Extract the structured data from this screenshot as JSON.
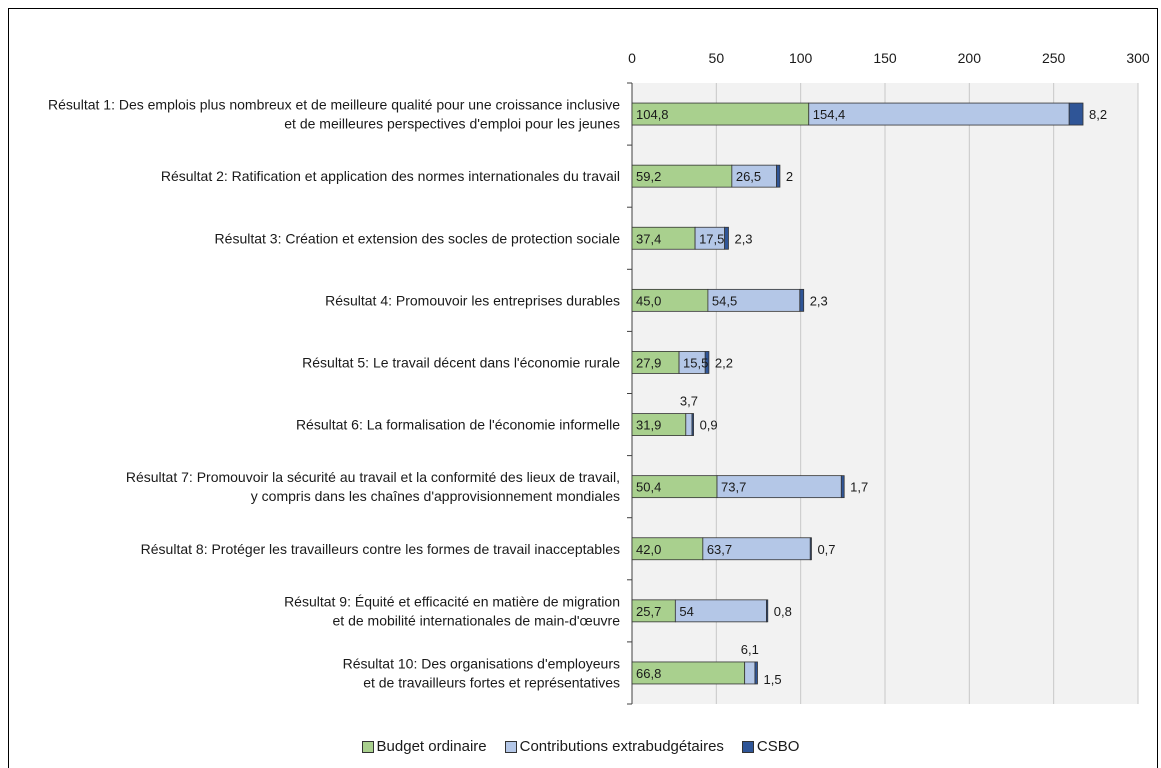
{
  "chart_data": {
    "type": "bar",
    "orientation": "horizontal",
    "stacked": true,
    "xlim": [
      0,
      300
    ],
    "x_ticks": [
      "0",
      "50",
      "100",
      "150",
      "200",
      "250",
      "300"
    ],
    "grid": true,
    "legend_position": "bottom",
    "categories": [
      [
        "Résultat 1: Des emplois plus nombreux et de meilleure qualité pour une croissance inclusive",
        "et de meilleures perspectives d'emploi pour les jeunes"
      ],
      [
        "Résultat 2: Ratification et application des normes internationales du travail"
      ],
      [
        "Résultat 3: Création et extension des socles de protection sociale"
      ],
      [
        "Résultat 4: Promouvoir les entreprises durables"
      ],
      [
        "Résultat 5: Le travail décent dans l'économie rurale"
      ],
      [
        "Résultat 6: La formalisation de l'économie informelle"
      ],
      [
        "Résultat 7: Promouvoir la sécurité au travail et la conformité des lieux de travail,",
        "y compris dans les chaînes d'approvisionnement mondiales"
      ],
      [
        "Résultat 8: Protéger les travailleurs contre les formes de travail inacceptables"
      ],
      [
        "Résultat 9: Équité et efficacité en matière de migration",
        "et de mobilité internationales de main-d'œuvre"
      ],
      [
        "Résultat 10: Des organisations d'employeurs",
        "et de travailleurs fortes et représentatives"
      ]
    ],
    "series": [
      {
        "name": "Budget ordinaire",
        "color": "#a9d08e",
        "values": [
          104.8,
          59.2,
          37.4,
          45.0,
          27.9,
          31.9,
          50.4,
          42.0,
          25.7,
          66.8
        ],
        "labels": [
          "104,8",
          "59,2",
          "37,4",
          "45,0",
          "27,9",
          "31,9",
          "50,4",
          "42,0",
          "25,7",
          "66,8"
        ]
      },
      {
        "name": "Contributions extrabudgétaires",
        "color": "#b4c7e7",
        "values": [
          154.4,
          26.5,
          17.5,
          54.5,
          15.5,
          3.7,
          73.7,
          63.7,
          54,
          6.1
        ],
        "labels": [
          "154,4",
          "26,5",
          "17,5",
          "54,5",
          "15,5",
          "3,7",
          "73,7",
          "63,7",
          "54",
          "6,1"
        ]
      },
      {
        "name": "CSBO",
        "color": "#2f5597",
        "values": [
          8.2,
          2,
          2.3,
          2.3,
          2.2,
          0.9,
          1.7,
          0.7,
          0.8,
          1.5
        ],
        "labels": [
          "8,2",
          "2",
          "2,3",
          "2,3",
          "2,2",
          "0,9",
          "1,7",
          "0,7",
          "0,8",
          "1,5"
        ]
      }
    ]
  }
}
